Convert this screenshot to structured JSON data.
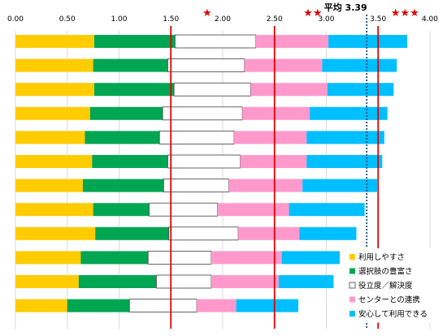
{
  "chart_data": {
    "type": "bar",
    "orientation": "horizontal",
    "stacked": true,
    "xlim": [
      0,
      4
    ],
    "x_ticks": [
      "0.00",
      "0.50",
      "1.00",
      "1.50",
      "2.00",
      "2.50",
      "3.00",
      "3.50",
      "4.00"
    ],
    "x_tick_values": [
      0,
      0.5,
      1,
      1.5,
      2,
      2.5,
      3,
      3.5,
      4
    ],
    "grid": true,
    "legend_position": "bottom-right",
    "series": [
      {
        "name": "利用しやすさ",
        "color": "#ffcc00",
        "values": [
          0.76,
          0.75,
          0.76,
          0.72,
          0.67,
          0.74,
          0.65,
          0.75,
          0.77,
          0.63,
          0.61,
          0.5
        ]
      },
      {
        "name": "選択肢の豊富さ",
        "color": "#00a651",
        "values": [
          0.78,
          0.72,
          0.77,
          0.7,
          0.72,
          0.73,
          0.78,
          0.54,
          0.71,
          0.65,
          0.75,
          0.6
        ]
      },
      {
        "name": "役立度／解決度",
        "color": "#ffffff",
        "values": [
          0.78,
          0.74,
          0.74,
          0.77,
          0.72,
          0.7,
          0.63,
          0.66,
          0.67,
          0.61,
          0.53,
          0.65
        ]
      },
      {
        "name": "センターとの連携",
        "color": "#ff99cc",
        "values": [
          0.7,
          0.75,
          0.74,
          0.65,
          0.7,
          0.64,
          0.71,
          0.69,
          0.59,
          0.68,
          0.65,
          0.38
        ]
      },
      {
        "name": "安心して利用できる",
        "color": "#00bfff",
        "values": [
          0.76,
          0.72,
          0.64,
          0.75,
          0.75,
          0.73,
          0.72,
          0.73,
          0.55,
          0.56,
          0.53,
          0.6
        ]
      }
    ],
    "reference_lines": [
      {
        "value": 1.5,
        "color": "#e00000",
        "style": "solid",
        "label": "★"
      },
      {
        "value": 2.5,
        "color": "#e00000",
        "style": "solid",
        "label": "★★"
      },
      {
        "value": 3.5,
        "color": "#e00000",
        "style": "solid",
        "label": "★★★"
      },
      {
        "value": 3.39,
        "color": "#1f4e79",
        "style": "dotted",
        "label": "平均 3.39"
      }
    ]
  }
}
